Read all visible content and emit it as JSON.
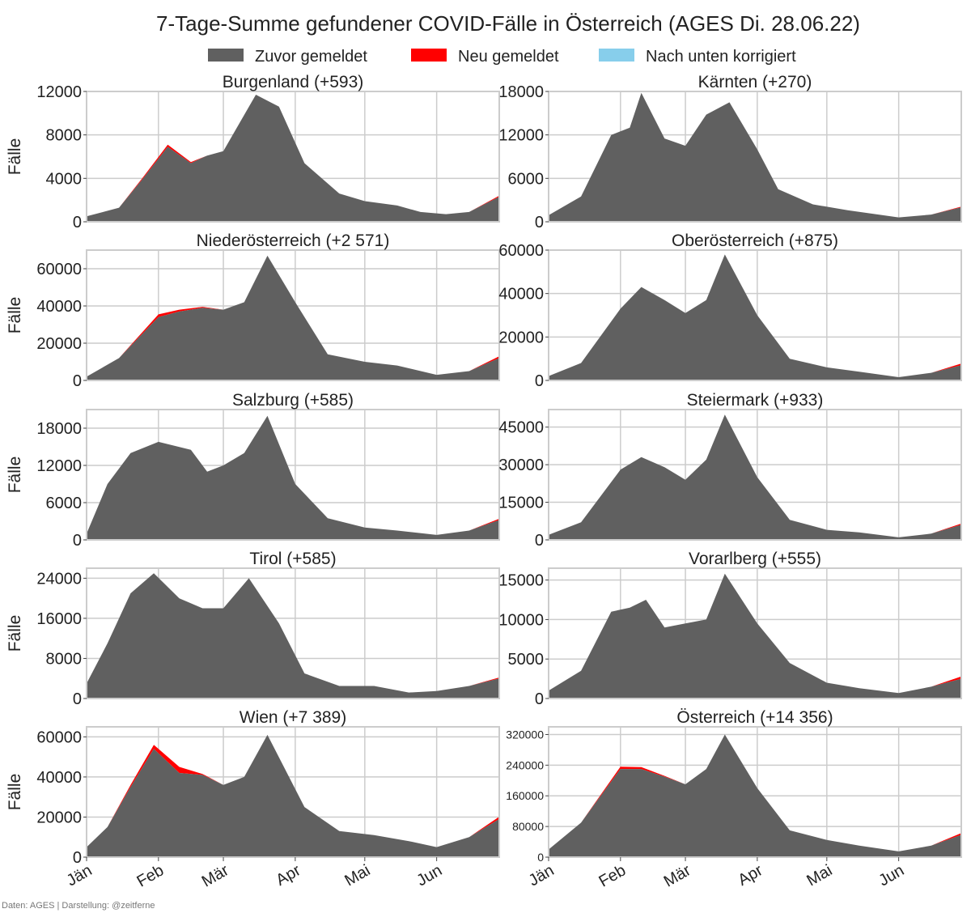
{
  "title": "7-Tage-Summe gefundener COVID-Fälle in Österreich (AGES Di. 28.06.22)",
  "legend": [
    {
      "label": "Zuvor gemeldet",
      "color": "#606060"
    },
    {
      "label": "Neu gemeldet",
      "color": "#ff0000"
    },
    {
      "label": "Nach unten korrigiert",
      "color": "#87ceeb"
    }
  ],
  "ylabel": "Fälle",
  "footer": "Daten: AGES | Darstellung: @zeitferne",
  "x_ticks": [
    "Jän",
    "Feb",
    "Mär",
    "Apr",
    "Mai",
    "Jun"
  ],
  "chart_data": [
    {
      "type": "area",
      "title": "Burgenland (+593)",
      "x_range": [
        "2022-01-01",
        "2022-06-28"
      ],
      "ylim": [
        0,
        12000
      ],
      "yticks": [
        0,
        4000,
        8000,
        12000
      ],
      "x": [
        "2022-01-01",
        "2022-01-15",
        "2022-01-25",
        "2022-02-05",
        "2022-02-15",
        "2022-02-22",
        "2022-03-01",
        "2022-03-15",
        "2022-03-25",
        "2022-04-05",
        "2022-04-20",
        "2022-05-01",
        "2022-05-15",
        "2022-05-25",
        "2022-06-05",
        "2022-06-15",
        "2022-06-28"
      ],
      "series": [
        {
          "values": [
            500,
            1300,
            3900,
            6900,
            5400,
            6100,
            6500,
            11700,
            10600,
            5400,
            2600,
            1900,
            1500,
            900,
            700,
            900,
            2300
          ]
        },
        {
          "values": [
            0,
            0,
            100,
            200,
            100,
            0,
            0,
            0,
            0,
            0,
            0,
            0,
            0,
            0,
            0,
            0,
            100
          ]
        },
        {
          "values": [
            0,
            0,
            0,
            0,
            0,
            0,
            0,
            0,
            0,
            0,
            0,
            0,
            0,
            0,
            0,
            0,
            0
          ]
        }
      ]
    },
    {
      "type": "area",
      "title": "Kärnten (+270)",
      "x_range": [
        "2022-01-01",
        "2022-06-28"
      ],
      "ylim": [
        0,
        18000
      ],
      "yticks": [
        0,
        6000,
        12000,
        18000
      ],
      "x": [
        "2022-01-01",
        "2022-01-15",
        "2022-01-28",
        "2022-02-05",
        "2022-02-10",
        "2022-02-20",
        "2022-03-01",
        "2022-03-10",
        "2022-03-20",
        "2022-04-01",
        "2022-04-10",
        "2022-04-25",
        "2022-05-10",
        "2022-06-01",
        "2022-06-15",
        "2022-06-28"
      ],
      "series": [
        {
          "values": [
            900,
            3500,
            12000,
            13000,
            17800,
            11500,
            10500,
            14800,
            16500,
            10000,
            4500,
            2400,
            1600,
            600,
            1000,
            2000
          ]
        },
        {
          "values": [
            0,
            0,
            0,
            0,
            0,
            0,
            0,
            0,
            0,
            0,
            0,
            0,
            0,
            0,
            0,
            100
          ]
        },
        {
          "values": [
            0,
            0,
            0,
            0,
            0,
            0,
            0,
            0,
            0,
            0,
            0,
            0,
            0,
            0,
            0,
            0
          ]
        }
      ]
    },
    {
      "type": "area",
      "title": "Niederösterreich (+2 571)",
      "x_range": [
        "2022-01-01",
        "2022-06-28"
      ],
      "ylim": [
        0,
        70000
      ],
      "yticks": [
        0,
        20000,
        40000,
        60000
      ],
      "x": [
        "2022-01-01",
        "2022-01-15",
        "2022-02-01",
        "2022-02-10",
        "2022-02-20",
        "2022-03-01",
        "2022-03-10",
        "2022-03-20",
        "2022-04-01",
        "2022-04-15",
        "2022-05-01",
        "2022-05-15",
        "2022-06-01",
        "2022-06-15",
        "2022-06-28"
      ],
      "series": [
        {
          "values": [
            2000,
            12000,
            34000,
            37000,
            39000,
            38000,
            42000,
            67000,
            42000,
            14000,
            10000,
            8000,
            3000,
            5000,
            12000
          ]
        },
        {
          "values": [
            0,
            0,
            1500,
            1000,
            500,
            0,
            0,
            0,
            0,
            0,
            0,
            0,
            0,
            0,
            1000
          ]
        },
        {
          "values": [
            0,
            0,
            0,
            0,
            0,
            0,
            0,
            0,
            0,
            0,
            0,
            0,
            0,
            0,
            0
          ]
        }
      ]
    },
    {
      "type": "area",
      "title": "Oberösterreich (+875)",
      "x_range": [
        "2022-01-01",
        "2022-06-28"
      ],
      "ylim": [
        0,
        60000
      ],
      "yticks": [
        0,
        20000,
        40000,
        60000
      ],
      "x": [
        "2022-01-01",
        "2022-01-15",
        "2022-02-01",
        "2022-02-10",
        "2022-02-20",
        "2022-03-01",
        "2022-03-10",
        "2022-03-18",
        "2022-04-01",
        "2022-04-15",
        "2022-05-01",
        "2022-05-15",
        "2022-06-01",
        "2022-06-15",
        "2022-06-28"
      ],
      "series": [
        {
          "values": [
            2000,
            8000,
            33000,
            43000,
            37000,
            31000,
            37000,
            58000,
            30000,
            10000,
            6000,
            4000,
            1500,
            3500,
            7000
          ]
        },
        {
          "values": [
            0,
            0,
            0,
            0,
            0,
            0,
            0,
            0,
            0,
            0,
            0,
            0,
            0,
            0,
            800
          ]
        },
        {
          "values": [
            0,
            0,
            0,
            0,
            0,
            0,
            0,
            0,
            0,
            0,
            0,
            0,
            0,
            0,
            0
          ]
        }
      ]
    },
    {
      "type": "area",
      "title": "Salzburg (+585)",
      "x_range": [
        "2022-01-01",
        "2022-06-28"
      ],
      "ylim": [
        0,
        21000
      ],
      "yticks": [
        0,
        6000,
        12000,
        18000
      ],
      "x": [
        "2022-01-01",
        "2022-01-10",
        "2022-01-20",
        "2022-02-01",
        "2022-02-15",
        "2022-02-22",
        "2022-03-01",
        "2022-03-10",
        "2022-03-20",
        "2022-04-01",
        "2022-04-15",
        "2022-05-01",
        "2022-05-15",
        "2022-06-01",
        "2022-06-15",
        "2022-06-28"
      ],
      "series": [
        {
          "values": [
            1000,
            9000,
            14000,
            15800,
            14500,
            11000,
            12000,
            14000,
            20000,
            9000,
            3500,
            2000,
            1500,
            800,
            1500,
            3200
          ]
        },
        {
          "values": [
            0,
            0,
            0,
            0,
            0,
            0,
            0,
            0,
            0,
            0,
            0,
            0,
            0,
            0,
            0,
            200
          ]
        },
        {
          "values": [
            0,
            0,
            0,
            0,
            0,
            0,
            0,
            0,
            0,
            0,
            0,
            0,
            0,
            0,
            0,
            0
          ]
        }
      ]
    },
    {
      "type": "area",
      "title": "Steiermark (+933)",
      "x_range": [
        "2022-01-01",
        "2022-06-28"
      ],
      "ylim": [
        0,
        52000
      ],
      "yticks": [
        0,
        15000,
        30000,
        45000
      ],
      "x": [
        "2022-01-01",
        "2022-01-15",
        "2022-02-01",
        "2022-02-10",
        "2022-02-20",
        "2022-03-01",
        "2022-03-10",
        "2022-03-18",
        "2022-04-01",
        "2022-04-15",
        "2022-05-01",
        "2022-05-15",
        "2022-06-01",
        "2022-06-15",
        "2022-06-28"
      ],
      "series": [
        {
          "values": [
            2000,
            7000,
            28000,
            33000,
            29000,
            24000,
            32000,
            50000,
            25000,
            8000,
            4000,
            3000,
            1000,
            2500,
            6000
          ]
        },
        {
          "values": [
            0,
            0,
            0,
            0,
            0,
            0,
            0,
            0,
            0,
            0,
            0,
            0,
            0,
            0,
            500
          ]
        },
        {
          "values": [
            0,
            0,
            0,
            0,
            0,
            0,
            0,
            0,
            0,
            0,
            0,
            0,
            0,
            0,
            0
          ]
        }
      ]
    },
    {
      "type": "area",
      "title": "Tirol (+585)",
      "x_range": [
        "2022-01-01",
        "2022-06-28"
      ],
      "ylim": [
        0,
        26000
      ],
      "yticks": [
        0,
        8000,
        16000,
        24000
      ],
      "x": [
        "2022-01-01",
        "2022-01-10",
        "2022-01-20",
        "2022-01-30",
        "2022-02-10",
        "2022-02-20",
        "2022-03-01",
        "2022-03-12",
        "2022-03-25",
        "2022-04-05",
        "2022-04-20",
        "2022-05-05",
        "2022-05-20",
        "2022-06-01",
        "2022-06-15",
        "2022-06-28"
      ],
      "series": [
        {
          "values": [
            3000,
            11000,
            21000,
            25000,
            20000,
            18000,
            18000,
            24000,
            15000,
            5000,
            2500,
            2500,
            1200,
            1500,
            2500,
            4000
          ]
        },
        {
          "values": [
            0,
            0,
            0,
            0,
            0,
            0,
            0,
            0,
            0,
            0,
            0,
            0,
            0,
            0,
            0,
            200
          ]
        },
        {
          "values": [
            0,
            0,
            0,
            0,
            0,
            0,
            0,
            0,
            0,
            0,
            0,
            0,
            0,
            0,
            0,
            0
          ]
        }
      ]
    },
    {
      "type": "area",
      "title": "Vorarlberg (+555)",
      "x_range": [
        "2022-01-01",
        "2022-06-28"
      ],
      "ylim": [
        0,
        16500
      ],
      "yticks": [
        0,
        5000,
        10000,
        15000
      ],
      "x": [
        "2022-01-01",
        "2022-01-15",
        "2022-01-28",
        "2022-02-05",
        "2022-02-12",
        "2022-02-20",
        "2022-03-01",
        "2022-03-10",
        "2022-03-18",
        "2022-04-01",
        "2022-04-15",
        "2022-05-01",
        "2022-05-15",
        "2022-06-01",
        "2022-06-15",
        "2022-06-28"
      ],
      "series": [
        {
          "values": [
            1000,
            3500,
            11000,
            11500,
            12500,
            9000,
            9500,
            10000,
            15800,
            9500,
            4500,
            2000,
            1300,
            700,
            1500,
            2500
          ]
        },
        {
          "values": [
            0,
            0,
            0,
            0,
            0,
            0,
            0,
            0,
            0,
            0,
            0,
            0,
            0,
            0,
            0,
            300
          ]
        },
        {
          "values": [
            0,
            0,
            0,
            0,
            0,
            0,
            0,
            0,
            0,
            0,
            0,
            0,
            0,
            0,
            0,
            0
          ]
        }
      ]
    },
    {
      "type": "area",
      "title": "Wien (+7 389)",
      "x_range": [
        "2022-01-01",
        "2022-06-28"
      ],
      "ylim": [
        0,
        65000
      ],
      "yticks": [
        0,
        20000,
        40000,
        60000
      ],
      "x": [
        "2022-01-01",
        "2022-01-10",
        "2022-01-20",
        "2022-01-30",
        "2022-02-10",
        "2022-02-20",
        "2022-03-01",
        "2022-03-10",
        "2022-03-20",
        "2022-04-05",
        "2022-04-20",
        "2022-05-05",
        "2022-05-20",
        "2022-06-01",
        "2022-06-15",
        "2022-06-28"
      ],
      "series": [
        {
          "values": [
            5000,
            15000,
            35000,
            54000,
            42000,
            41000,
            36000,
            40000,
            61000,
            25000,
            13000,
            11000,
            8000,
            5000,
            10000,
            19000
          ]
        },
        {
          "values": [
            0,
            0,
            1000,
            2000,
            3000,
            500,
            0,
            0,
            0,
            0,
            0,
            0,
            0,
            0,
            0,
            1200
          ]
        },
        {
          "values": [
            0,
            0,
            0,
            0,
            0,
            0,
            0,
            0,
            0,
            0,
            0,
            0,
            0,
            0,
            0,
            0
          ]
        }
      ]
    },
    {
      "type": "area",
      "title": "Österreich (+14 356)",
      "x_range": [
        "2022-01-01",
        "2022-06-28"
      ],
      "ylim": [
        0,
        340000
      ],
      "yticks": [
        0,
        80000,
        160000,
        240000,
        320000
      ],
      "x": [
        "2022-01-01",
        "2022-01-15",
        "2022-02-01",
        "2022-02-10",
        "2022-02-20",
        "2022-03-01",
        "2022-03-10",
        "2022-03-18",
        "2022-04-01",
        "2022-04-15",
        "2022-05-01",
        "2022-05-15",
        "2022-06-01",
        "2022-06-15",
        "2022-06-28"
      ],
      "series": [
        {
          "values": [
            20000,
            90000,
            230000,
            230000,
            210000,
            190000,
            230000,
            320000,
            180000,
            70000,
            45000,
            30000,
            15000,
            30000,
            58000
          ]
        },
        {
          "values": [
            0,
            0,
            6000,
            5000,
            2000,
            0,
            0,
            0,
            0,
            0,
            0,
            0,
            0,
            0,
            5000
          ]
        },
        {
          "values": [
            0,
            0,
            0,
            0,
            0,
            0,
            0,
            0,
            0,
            0,
            0,
            0,
            0,
            0,
            0
          ]
        }
      ]
    }
  ]
}
